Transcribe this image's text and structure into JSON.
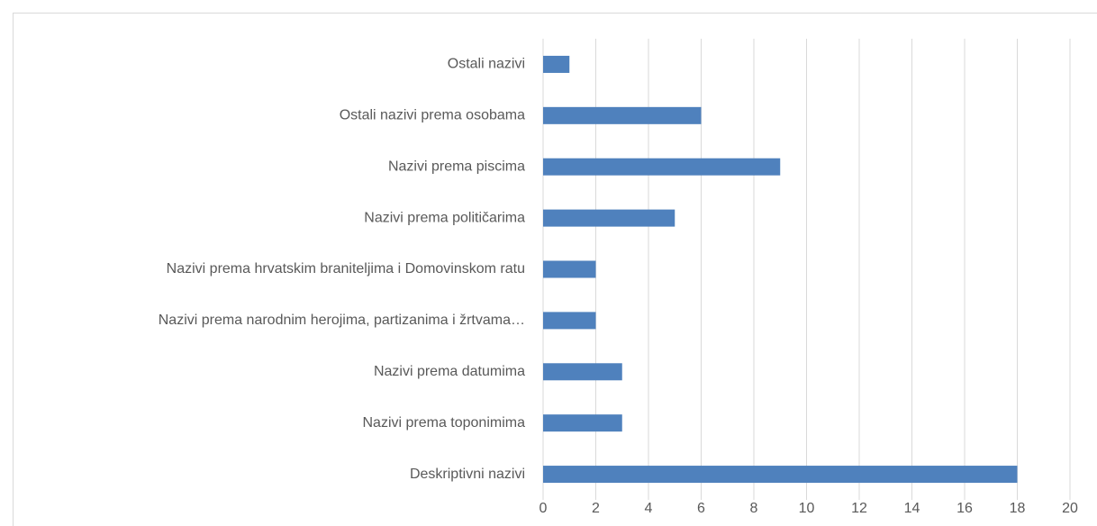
{
  "chart_data": {
    "type": "bar",
    "orientation": "horizontal",
    "categories": [
      "Ostali nazivi",
      "Ostali nazivi prema osobama",
      "Nazivi prema piscima",
      "Nazivi prema političarima",
      "Nazivi prema hrvatskim braniteljima i Domovinskom ratu",
      "Nazivi prema narodnim herojima, partizanima i žrtvama…",
      "Nazivi prema datumima",
      "Nazivi prema toponimima",
      "Deskriptivni nazivi"
    ],
    "values": [
      1,
      6,
      9,
      5,
      2,
      2,
      3,
      3,
      18
    ],
    "color": "#4f81bd",
    "xlim": [
      0,
      20
    ],
    "xticks": [
      0,
      2,
      4,
      6,
      8,
      10,
      12,
      14,
      16,
      18,
      20
    ],
    "grid": true
  }
}
